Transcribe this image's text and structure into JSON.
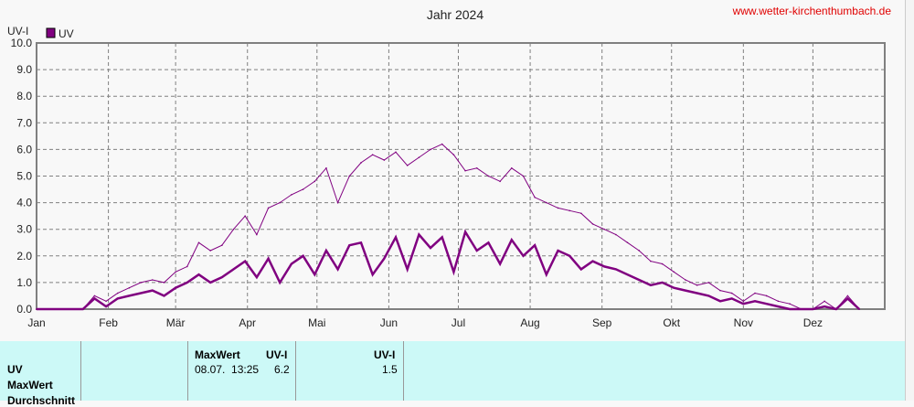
{
  "header": {
    "title": "Jahr 2024",
    "website": "www.wetter-kirchenthumbach.de"
  },
  "chart_data": {
    "type": "line",
    "title": "Jahr 2024",
    "ylabel": "UV-I",
    "ylim": [
      0,
      10
    ],
    "yticks": [
      "0.0",
      "1.0",
      "2.0",
      "3.0",
      "4.0",
      "5.0",
      "6.0",
      "7.0",
      "8.0",
      "9.0",
      "10.0"
    ],
    "xticks": [
      "Jan",
      "Feb",
      "Mär",
      "Apr",
      "Mai",
      "Jun",
      "Jul",
      "Aug",
      "Sep",
      "Okt",
      "Nov",
      "Dez"
    ],
    "xtick_days": [
      0,
      31,
      60,
      91,
      121,
      152,
      182,
      213,
      244,
      274,
      305,
      335
    ],
    "legend": {
      "label": "UV",
      "position": "top-left"
    },
    "day_step": 5,
    "series": [
      {
        "name": "UV MaxWert",
        "color": "#800080",
        "values": [
          0,
          0,
          0,
          0,
          0,
          0.5,
          0.3,
          0.6,
          0.8,
          1.0,
          1.1,
          1.0,
          1.4,
          1.6,
          2.5,
          2.2,
          2.4,
          3.0,
          3.5,
          2.8,
          3.8,
          4.0,
          4.3,
          4.5,
          4.8,
          5.3,
          4.0,
          5.0,
          5.5,
          5.8,
          5.6,
          5.9,
          5.4,
          5.7,
          6.0,
          6.2,
          5.8,
          5.2,
          5.3,
          5.0,
          4.8,
          5.3,
          5.0,
          4.2,
          4.0,
          3.8,
          3.7,
          3.6,
          3.2,
          3.0,
          2.8,
          2.5,
          2.2,
          1.8,
          1.7,
          1.4,
          1.1,
          0.9,
          1.0,
          0.7,
          0.6,
          0.3,
          0.6,
          0.5,
          0.3,
          0.2,
          0,
          0,
          0.3,
          0,
          0.5,
          0
        ]
      },
      {
        "name": "UV Durchschnitt",
        "color": "#800080",
        "values": [
          0,
          0,
          0,
          0,
          0,
          0.4,
          0.1,
          0.4,
          0.5,
          0.6,
          0.7,
          0.5,
          0.8,
          1.0,
          1.3,
          1.0,
          1.2,
          1.5,
          1.8,
          1.2,
          1.9,
          1.0,
          1.7,
          2.0,
          1.3,
          2.2,
          1.5,
          2.4,
          2.5,
          1.3,
          1.9,
          2.7,
          1.5,
          2.8,
          2.3,
          2.7,
          1.4,
          2.9,
          2.2,
          2.5,
          1.7,
          2.6,
          2.0,
          2.4,
          1.3,
          2.2,
          2.0,
          1.5,
          1.8,
          1.6,
          1.5,
          1.3,
          1.1,
          0.9,
          1.0,
          0.8,
          0.7,
          0.6,
          0.5,
          0.3,
          0.4,
          0.2,
          0.3,
          0.2,
          0.1,
          0,
          0,
          0,
          0.1,
          0,
          0.4,
          0
        ]
      }
    ]
  },
  "table": {
    "row_labels": [
      "UV",
      "MaxWert",
      "Durchschnitt"
    ],
    "max_header": "MaxWert",
    "max_unit": "UV-I",
    "max_time": "08.07.  13:25",
    "max_value": "6.2",
    "avg_unit": "UV-I",
    "avg_value": "1.5"
  }
}
